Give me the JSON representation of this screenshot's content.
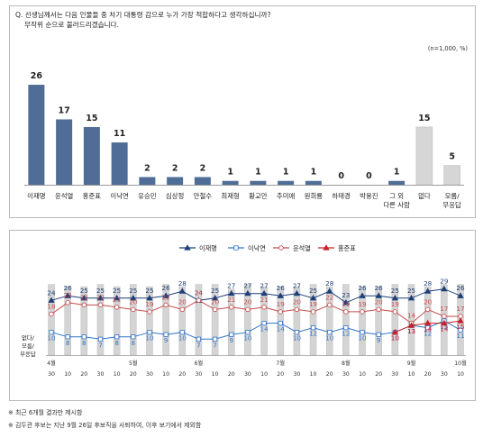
{
  "question": {
    "line1": "Q. 선생님께서는 다음 인물들 중 차기 대통령 감으로 누가 가장 적합하다고 생각하십니까?",
    "line2": "무작위 순으로 불러드리겠습니다."
  },
  "unit_note": "(n=1,000, %)",
  "colors": {
    "bar_main": "#4f6d96",
    "bar_other": "#d6d6d6",
    "lee_jaemyung": "#1f3f79",
    "lee_nakyeon": "#2f75c9",
    "yoon_seokyeol": "#c84a4a",
    "hong_junpyo": "#c8202a",
    "dk_bar": "#d4d4d4"
  },
  "chart_data": [
    {
      "type": "bar",
      "categories": [
        "이재명",
        "윤석열",
        "홍준표",
        "이낙연",
        "유승민",
        "심상정",
        "안철수",
        "최재형",
        "황교안",
        "추미애",
        "원희룡",
        "하태경",
        "박용진",
        "그 외 다른 사람",
        "없다",
        "모름/ 무응답"
      ],
      "category_lines": [
        [
          "이재명"
        ],
        [
          "윤석열"
        ],
        [
          "홍준표"
        ],
        [
          "이낙연"
        ],
        [
          "유승민"
        ],
        [
          "심상정"
        ],
        [
          "안철수"
        ],
        [
          "최재형"
        ],
        [
          "황교안"
        ],
        [
          "추미애"
        ],
        [
          "원희룡"
        ],
        [
          "하태경"
        ],
        [
          "박용진"
        ],
        [
          "그 외",
          "다른 사람"
        ],
        [
          "없다"
        ],
        [
          "모름/",
          "무응답"
        ]
      ],
      "values": [
        26,
        17,
        15,
        11,
        2,
        2,
        2,
        1,
        1,
        1,
        1,
        0,
        0,
        1,
        15,
        5
      ],
      "value_labels": [
        "26",
        "17",
        "15",
        "11",
        "2",
        "2",
        "2",
        "1",
        "1",
        "1",
        "1",
        "0",
        "0",
        "1",
        "15",
        "5"
      ],
      "gray_from_index": 14,
      "ylim": [
        0,
        30
      ]
    },
    {
      "type": "line",
      "legend_position": "top",
      "series": [
        {
          "name": "이재명",
          "values": [
            24,
            26,
            25,
            25,
            25,
            25,
            25,
            26,
            28,
            24,
            25,
            27,
            27,
            27,
            26,
            27,
            25,
            28,
            23,
            26,
            26,
            25,
            25,
            28,
            29,
            26
          ],
          "labels": [
            "24",
            "26",
            "25",
            "25",
            "25",
            "25",
            "25",
            "26",
            "28",
            "24",
            "25",
            "27",
            "27",
            "27",
            "26",
            "27",
            "25",
            "28",
            "23",
            "26",
            "26",
            "25",
            "25",
            "28",
            "29",
            "26"
          ]
        },
        {
          "name": "이낙연",
          "values": [
            10,
            8,
            8,
            7,
            8,
            8,
            10,
            9,
            10,
            7,
            7,
            9,
            10,
            14,
            14,
            10,
            12,
            10,
            12,
            10,
            9,
            10,
            13,
            12,
            15,
            11
          ],
          "labels": [
            "10",
            "8",
            "8",
            "7",
            "8",
            "8",
            "10",
            "9",
            "10",
            "7",
            "7",
            "9",
            "10",
            "14",
            "14",
            "10",
            "12",
            "10",
            "12",
            "10",
            "9",
            "10",
            "13",
            "12",
            "15",
            "11"
          ]
        },
        {
          "name": "윤석열",
          "values": [
            18,
            23,
            22,
            22,
            21,
            20,
            19,
            22,
            20,
            24,
            20,
            21,
            20,
            21,
            19,
            20,
            19,
            22,
            19,
            19,
            20,
            19,
            14,
            20,
            17,
            17
          ],
          "labels": [
            "18",
            "23",
            "22",
            "22",
            "21",
            "20",
            "19",
            "22",
            "20",
            "24",
            "20",
            "21",
            "20",
            "21",
            "19",
            "20",
            "19",
            "22",
            "19",
            "19",
            "20",
            "19",
            "14",
            "20",
            "17",
            "17"
          ]
        },
        {
          "name": "홍준표",
          "values": [
            null,
            null,
            null,
            null,
            null,
            null,
            null,
            null,
            null,
            null,
            null,
            null,
            null,
            null,
            null,
            null,
            null,
            null,
            null,
            null,
            null,
            10,
            13,
            14,
            14,
            15
          ],
          "labels": [
            "",
            "",
            "",
            "",
            "",
            "",
            "",
            "",
            "",
            "",
            "",
            "",
            "",
            "",
            "",
            "",
            "",
            "",
            "",
            "",
            "",
            "10",
            "13",
            "14",
            "14",
            "15"
          ]
        }
      ],
      "no_answer_bars": [
        31,
        30,
        30,
        31,
        30,
        31,
        30,
        31,
        30,
        31,
        31,
        29,
        31,
        30,
        30,
        30,
        31,
        30,
        31,
        30,
        30,
        31,
        31,
        30,
        31,
        31
      ],
      "no_answer_label": [
        "없다/",
        "모름/",
        "무응답"
      ],
      "x_week_labels": [
        "30",
        "10",
        "20",
        "30",
        "10",
        "20",
        "30",
        "10",
        "20",
        "30",
        "10",
        "20",
        "30",
        "10",
        "20",
        "30",
        "10",
        "20",
        "30",
        "10",
        "20",
        "30",
        "10",
        "20",
        "30",
        "10"
      ],
      "month_markers": [
        {
          "index": 0,
          "label": "4월"
        },
        {
          "index": 5,
          "label": "5월"
        },
        {
          "index": 9,
          "label": "6월"
        },
        {
          "index": 14,
          "label": "7월"
        },
        {
          "index": 18,
          "label": "8월"
        },
        {
          "index": 22,
          "label": "9월"
        },
        {
          "index": 25,
          "label": "10월"
        }
      ],
      "ylim": [
        0,
        34
      ]
    }
  ],
  "footnotes": [
    "※ 최근 6개월 결과만 제시함",
    "※ 김두관 후보는 지난 9월 26일 후보직을 사퇴하여, 이후 보기에서 제외함"
  ]
}
